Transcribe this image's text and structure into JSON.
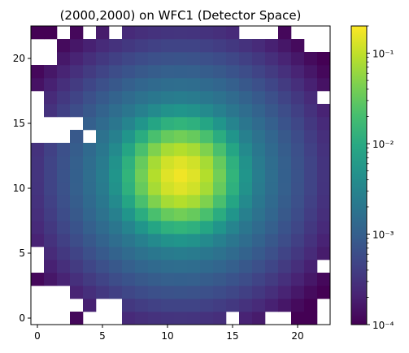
{
  "chart_data": {
    "type": "heatmap",
    "title": "(2000,2000) on WFC1 (Detector Space)",
    "xlabel": "",
    "ylabel": "",
    "grid": false,
    "xlim": [
      -0.5,
      22.5
    ],
    "ylim": [
      -0.5,
      22.5
    ],
    "x_ticks": [
      0,
      5,
      10,
      15,
      20
    ],
    "y_ticks": [
      0,
      5,
      10,
      15,
      20
    ],
    "colormap": "viridis",
    "color_scale": "log",
    "color_range": [
      0.0001,
      0.2
    ],
    "colorbar_ticks": [
      {
        "value": 0.1,
        "label": "10⁻¹"
      },
      {
        "value": 0.01,
        "label": "10⁻²"
      },
      {
        "value": 0.001,
        "label": "10⁻³"
      },
      {
        "value": 0.0001,
        "label": "10⁻⁴"
      }
    ],
    "missing_color": "#ffffff",
    "center": [
      11,
      11
    ],
    "peak_value": 0.2,
    "missing_cells": [
      [
        0,
        0
      ],
      [
        1,
        0
      ],
      [
        2,
        0
      ],
      [
        4,
        0
      ],
      [
        5,
        0
      ],
      [
        6,
        0
      ],
      [
        15,
        0
      ],
      [
        18,
        0
      ],
      [
        19,
        0
      ],
      [
        22,
        0
      ],
      [
        0,
        1
      ],
      [
        1,
        1
      ],
      [
        2,
        1
      ],
      [
        3,
        1
      ],
      [
        5,
        1
      ],
      [
        6,
        1
      ],
      [
        22,
        1
      ],
      [
        0,
        2
      ],
      [
        1,
        2
      ],
      [
        2,
        2
      ],
      [
        0,
        4
      ],
      [
        0,
        5
      ],
      [
        22,
        4
      ],
      [
        0,
        17
      ],
      [
        22,
        17
      ],
      [
        0,
        20
      ],
      [
        1,
        20
      ],
      [
        0,
        21
      ],
      [
        1,
        21
      ],
      [
        21,
        21
      ],
      [
        22,
        21
      ],
      [
        2,
        22
      ],
      [
        4,
        22
      ],
      [
        6,
        22
      ],
      [
        16,
        22
      ],
      [
        17,
        22
      ],
      [
        18,
        22
      ],
      [
        20,
        22
      ],
      [
        21,
        22
      ],
      [
        22,
        22
      ],
      [
        0,
        14
      ],
      [
        1,
        14
      ],
      [
        2,
        14
      ],
      [
        4,
        14
      ],
      [
        0,
        15
      ],
      [
        1,
        15
      ],
      [
        2,
        15
      ],
      [
        3,
        15
      ],
      [
        0,
        16
      ]
    ]
  }
}
